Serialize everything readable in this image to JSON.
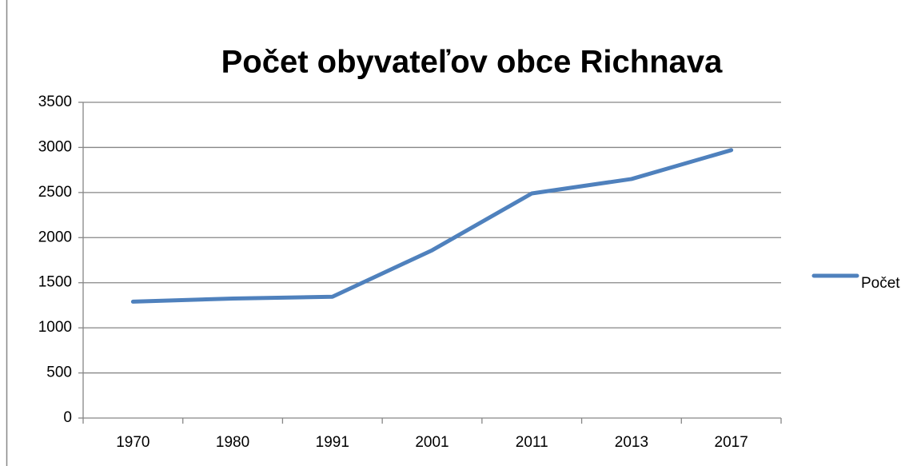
{
  "chart_data": {
    "type": "line",
    "title": "Počet obyvateľov obce Richnava",
    "categories": [
      "1970",
      "1980",
      "1991",
      "2001",
      "2011",
      "2013",
      "2017"
    ],
    "series": [
      {
        "name": "Počet",
        "color": "#4f81bd",
        "values": [
          1290,
          1325,
          1345,
          1860,
          2490,
          2650,
          2970
        ]
      }
    ],
    "ylim": [
      0,
      3500
    ],
    "yticks": [
      0,
      500,
      1000,
      1500,
      2000,
      2500,
      3000,
      3500
    ],
    "grid": true,
    "legend": "right"
  }
}
